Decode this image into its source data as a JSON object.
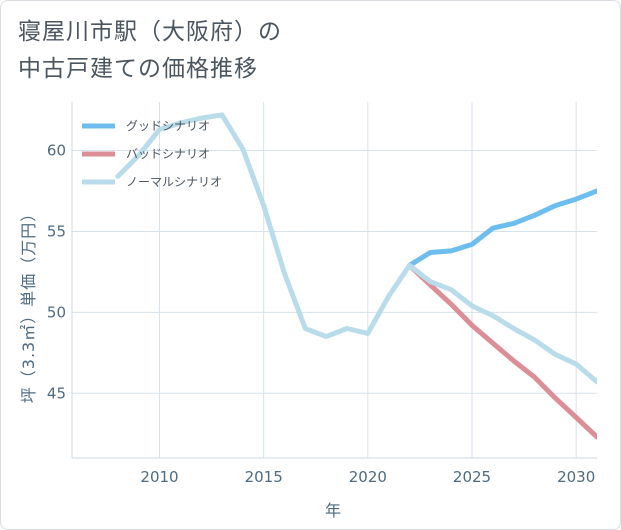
{
  "title_line1": "寝屋川市駅（大阪府）の",
  "title_line2": "中古戸建ての価格推移",
  "colors": {
    "good": "#6dbdef",
    "bad": "#db8e96",
    "normal": "#b9dcea",
    "grid": "#d6e2ec",
    "axis": "#4d6a80"
  },
  "chart_data": {
    "type": "line",
    "title": "寝屋川市駅（大阪府）の中古戸建ての価格推移",
    "xlabel": "年",
    "ylabel": "坪（3.3㎡）単価（万円）",
    "xlim": [
      2005.8,
      2031
    ],
    "ylim": [
      41,
      63
    ],
    "xticks": [
      2010,
      2015,
      2020,
      2025,
      2030
    ],
    "yticks": [
      45,
      50,
      55,
      60
    ],
    "grid": true,
    "legend_position": "top-left",
    "series": [
      {
        "key": "good",
        "name": "グッドシナリオ",
        "x": [
          2022,
          2023,
          2024,
          2025,
          2026,
          2027,
          2028,
          2029,
          2030,
          2031
        ],
        "y": [
          52.9,
          53.7,
          53.8,
          54.2,
          55.2,
          55.5,
          56.0,
          56.6,
          57.0,
          57.5
        ]
      },
      {
        "key": "bad",
        "name": "バッドシナリオ",
        "x": [
          2022,
          2023,
          2024,
          2025,
          2026,
          2027,
          2028,
          2029,
          2030,
          2031
        ],
        "y": [
          52.9,
          51.7,
          50.5,
          49.2,
          48.1,
          47.0,
          46.0,
          44.7,
          43.5,
          42.3
        ]
      },
      {
        "key": "normal",
        "name": "ノーマルシナリオ",
        "x": [
          2008,
          2009,
          2010,
          2011,
          2012,
          2013,
          2014,
          2015,
          2016,
          2017,
          2018,
          2019,
          2020,
          2021,
          2022,
          2023,
          2024,
          2025,
          2026,
          2027,
          2028,
          2029,
          2030,
          2031
        ],
        "y": [
          58.4,
          59.7,
          61.3,
          61.7,
          62.0,
          62.2,
          60.1,
          56.6,
          52.4,
          49.0,
          48.5,
          49.0,
          48.7,
          51.0,
          52.9,
          51.9,
          51.4,
          50.4,
          49.8,
          49.0,
          48.3,
          47.4,
          46.8,
          45.7
        ]
      }
    ]
  }
}
